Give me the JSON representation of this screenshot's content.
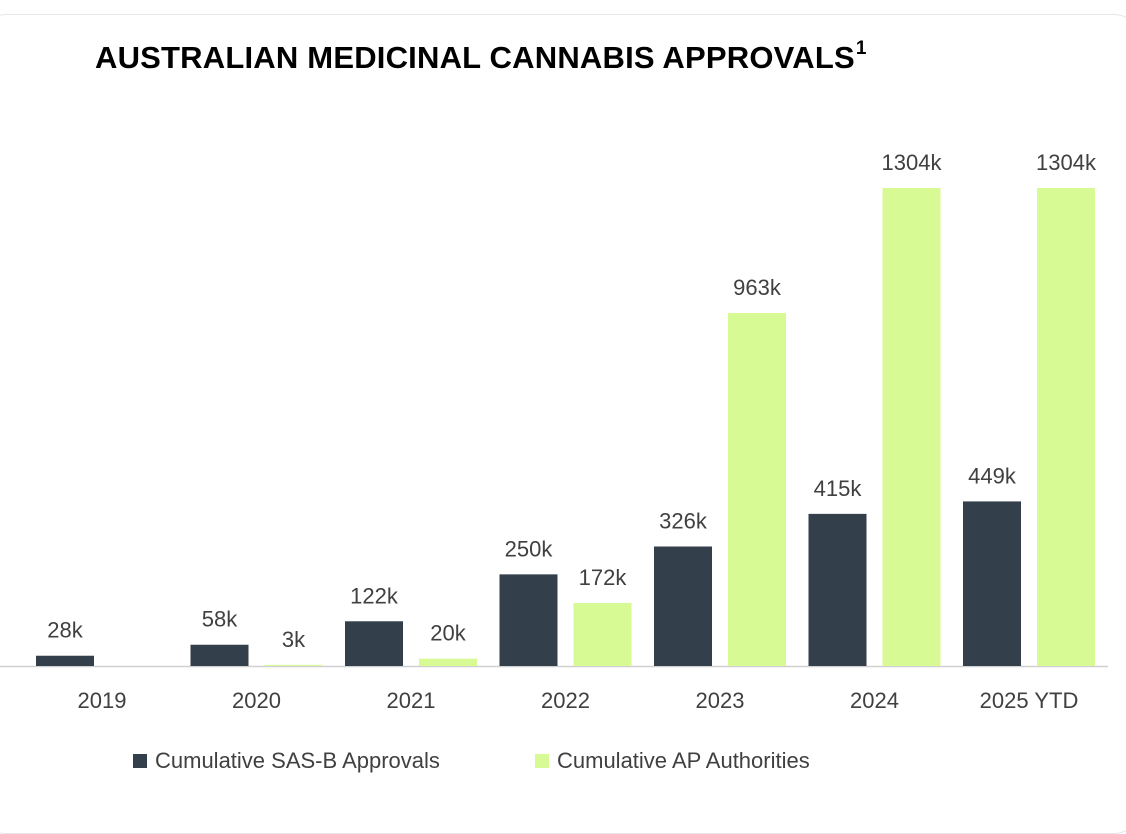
{
  "title": "AUSTRALIAN MEDICINAL CANNABIS APPROVALS",
  "title_footnote": "1",
  "colors": {
    "sas_b": "#333f4b",
    "ap": "#d7fa94",
    "baseline": "#d0d0d0",
    "axis_text": "#404040"
  },
  "chart_data": {
    "type": "bar",
    "categories": [
      "2019",
      "2020",
      "2021",
      "2022",
      "2023",
      "2024",
      "2025 YTD"
    ],
    "series": [
      {
        "name": "Cumulative SAS-B Approvals",
        "values": [
          28,
          58,
          122,
          250,
          326,
          415,
          449
        ],
        "labels": [
          "28k",
          "58k",
          "122k",
          "250k",
          "326k",
          "415k",
          "449k"
        ]
      },
      {
        "name": "Cumulative AP Authorities",
        "values": [
          null,
          3,
          20,
          172,
          963,
          1304,
          1304
        ],
        "labels": [
          "",
          "3k",
          "20k",
          "172k",
          "963k",
          "1304k",
          "1304k"
        ]
      }
    ],
    "unit": "thousands",
    "ylim": [
      0,
      1304
    ],
    "grid": false,
    "legend_position": "bottom"
  },
  "legend": [
    {
      "label": "Cumulative SAS-B Approvals"
    },
    {
      "label": "Cumulative AP Authorities"
    }
  ]
}
